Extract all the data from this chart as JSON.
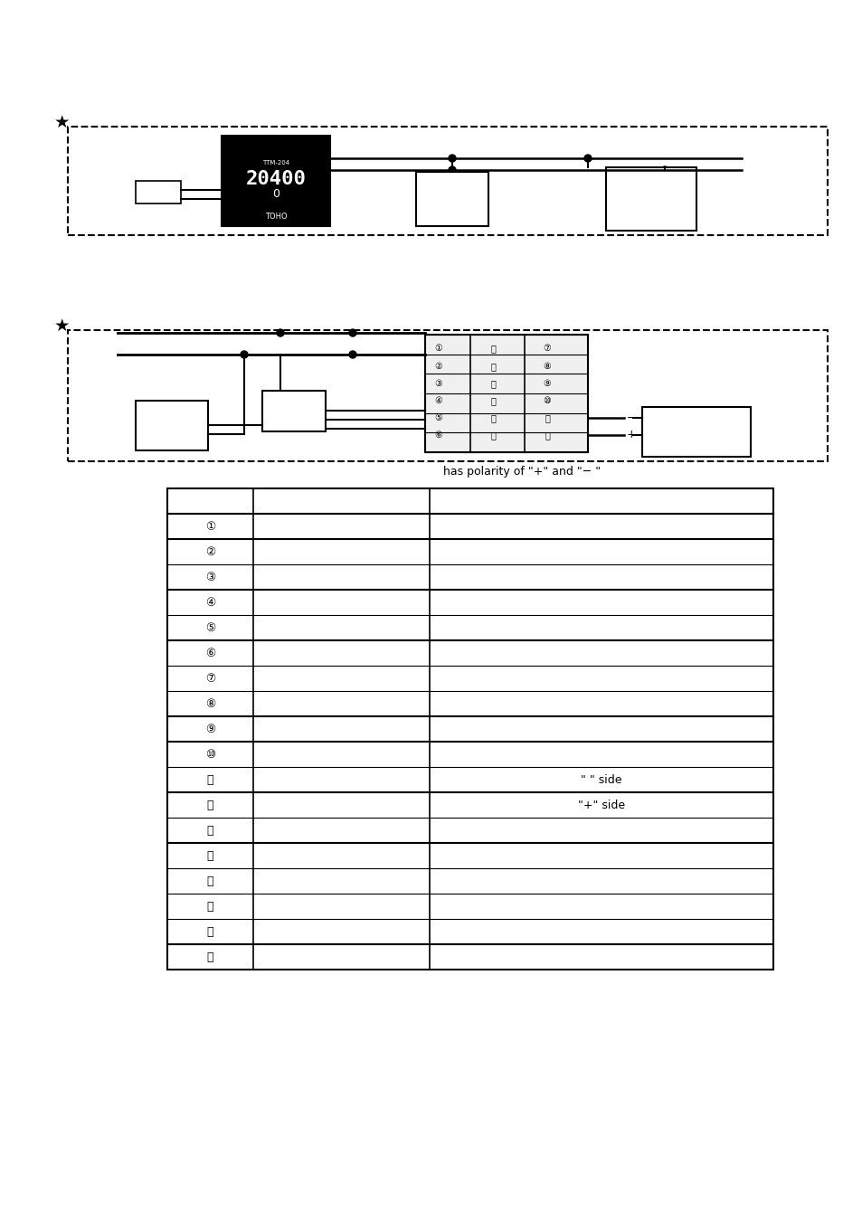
{
  "bg_color": "#ffffff",
  "star_symbol": "★",
  "polarity_text": "has polarity of \"+\" and \"− \"",
  "table_rows": [
    {
      "num": "①",
      "col2": "",
      "col3": ""
    },
    {
      "num": "②",
      "col2": "",
      "col3": ""
    },
    {
      "num": "③",
      "col2": "",
      "col3": ""
    },
    {
      "num": "④",
      "col2": "",
      "col3": ""
    },
    {
      "num": "⑤",
      "col2": "",
      "col3": ""
    },
    {
      "num": "⑥",
      "col2": "",
      "col3": ""
    },
    {
      "num": "⑦",
      "col2": "",
      "col3": ""
    },
    {
      "num": "⑧",
      "col2": "",
      "col3": ""
    },
    {
      "num": "⑨",
      "col2": "",
      "col3": ""
    },
    {
      "num": "⑩",
      "col2": "",
      "col3": ""
    },
    {
      "num": "⑪",
      "col2": "",
      "col3": "\"−\" side"
    },
    {
      "num": "⑫",
      "col2": "",
      "col3": "\"+\" side"
    },
    {
      "num": "⑬",
      "col2": "",
      "col3": ""
    },
    {
      "num": "⑭",
      "col2": "",
      "col3": ""
    },
    {
      "num": "⑮",
      "col2": "",
      "col3": ""
    },
    {
      "num": "⑯",
      "col2": "",
      "col3": ""
    },
    {
      "num": "⑰",
      "col2": "",
      "col3": ""
    },
    {
      "num": "⑱",
      "col2": "",
      "col3": ""
    }
  ]
}
